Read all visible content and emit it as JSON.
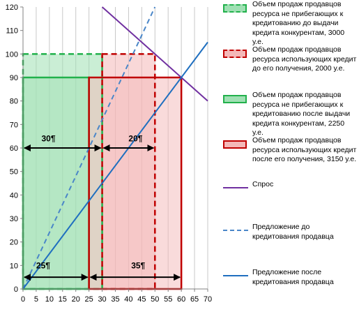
{
  "chart_data": {
    "type": "line",
    "title": "",
    "xlabel": "",
    "ylabel": "",
    "xlim": [
      0,
      70
    ],
    "ylim": [
      0,
      120
    ],
    "x_ticks": [
      0,
      5,
      10,
      15,
      20,
      25,
      30,
      35,
      40,
      45,
      50,
      55,
      60,
      65,
      70
    ],
    "y_ticks": [
      0,
      10,
      20,
      30,
      40,
      50,
      60,
      70,
      80,
      90,
      100,
      110,
      120
    ],
    "grid": "vertical",
    "legend_position": "right",
    "series": [
      {
        "name": "Объем продаж продавцов ресурса не прибегающих к кредитованию до выдачи кредита конкурентам, 3000 у.е.",
        "kind": "rect",
        "x": [
          0,
          30
        ],
        "y": [
          0,
          100
        ],
        "stroke": "#22b14c",
        "fill": "#9fe0b3",
        "dashed": true
      },
      {
        "name": "Объем продаж продавцов ресурса использующих кредит до его получения, 2000 у.е.",
        "kind": "rect",
        "x": [
          30,
          50
        ],
        "y": [
          0,
          100
        ],
        "stroke": "#c00000",
        "fill": "#f4b8b8",
        "dashed": true
      },
      {
        "name": "Объем продаж продавцов ресурса не прибегающих к кредитованию после выдачи кредита конкурентам, 2250 у.е.",
        "kind": "rect",
        "x": [
          0,
          25
        ],
        "y": [
          0,
          90
        ],
        "stroke": "#22b14c",
        "fill": "#9fe0b3",
        "dashed": false
      },
      {
        "name": "Объем продаж продавцов ресурса использующих кредит после его получения, 3150 у.е.",
        "kind": "rect",
        "x": [
          25,
          60
        ],
        "y": [
          0,
          90
        ],
        "stroke": "#c00000",
        "fill": "#f4b8b8",
        "dashed": false
      },
      {
        "name": "Спрос",
        "kind": "line",
        "x": [
          30,
          70
        ],
        "y": [
          120,
          80
        ],
        "stroke": "#7030a0",
        "dashed": false
      },
      {
        "name": "Предложение до кредитования продавца",
        "kind": "line",
        "x": [
          0,
          50
        ],
        "y": [
          0,
          120
        ],
        "stroke": "#4a86c8",
        "dashed": true
      },
      {
        "name": "Предложение после кредитования продавца",
        "kind": "line",
        "x": [
          0,
          70
        ],
        "y": [
          0,
          105
        ],
        "stroke": "#1f6fbf",
        "dashed": false
      }
    ],
    "annotations": [
      {
        "text": "30¶",
        "x": 7,
        "y": 64,
        "arrow": [
          0,
          30
        ],
        "arrow_y": 60
      },
      {
        "text": "20¶",
        "x": 40,
        "y": 64,
        "arrow": [
          30,
          50
        ],
        "arrow_y": 60
      },
      {
        "text": "25¶",
        "x": 5,
        "y": 10,
        "arrow": [
          0,
          25
        ],
        "arrow_y": 5
      },
      {
        "text": "35¶",
        "x": 41,
        "y": 10,
        "arrow": [
          25,
          60
        ],
        "arrow_y": 5
      }
    ]
  }
}
